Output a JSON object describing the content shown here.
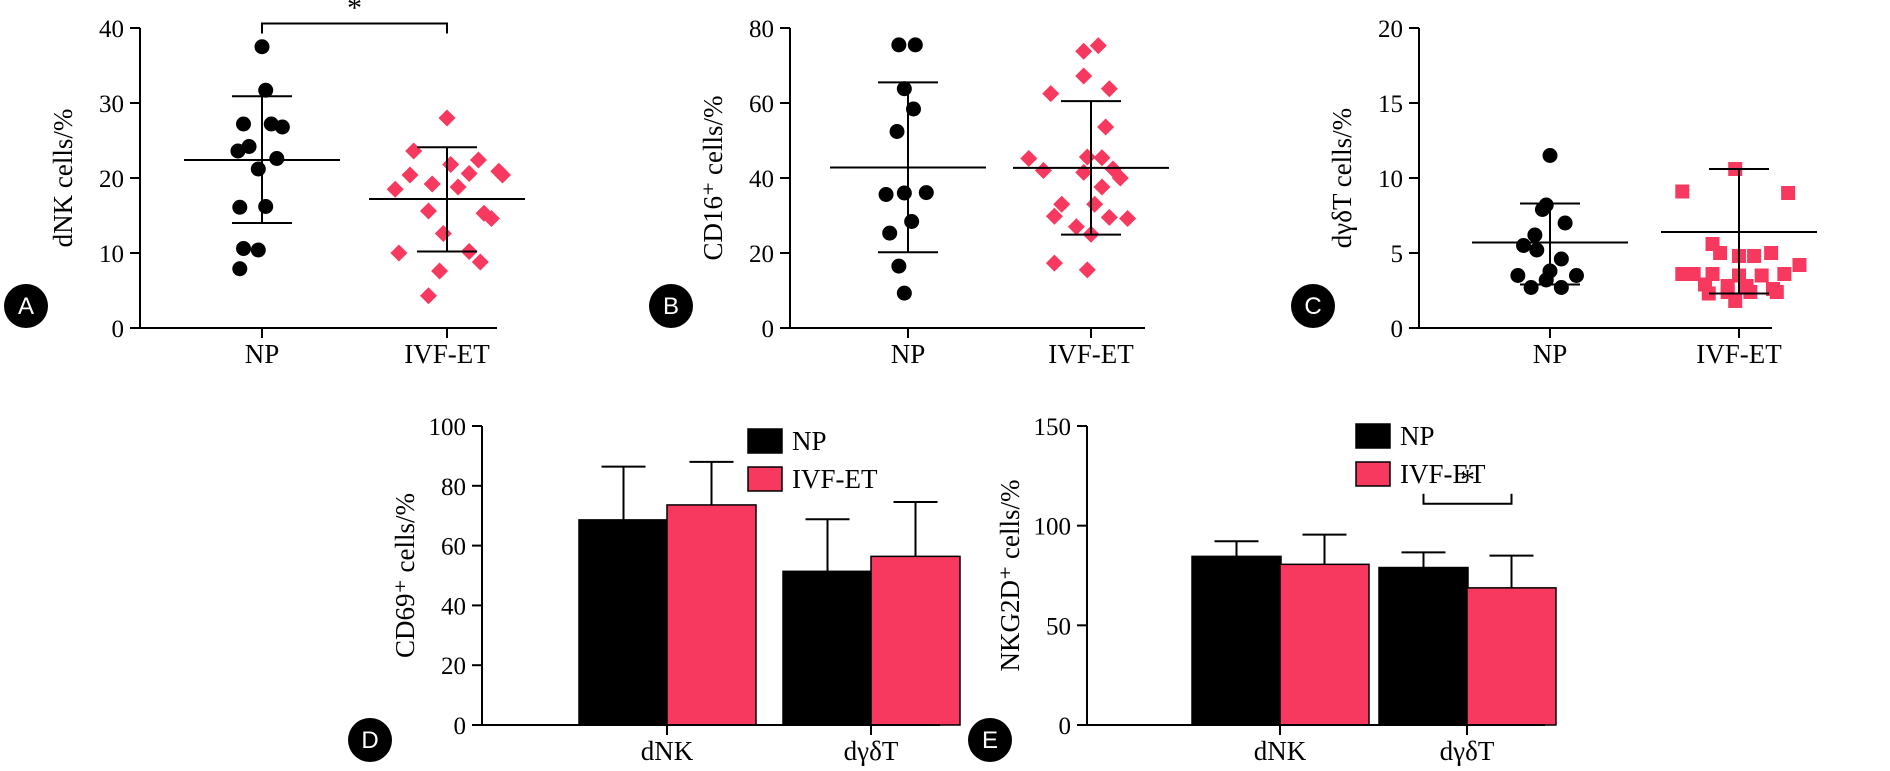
{
  "colors": {
    "np": "#000000",
    "ivf": "#f7385f",
    "axis": "#000000"
  },
  "chart_data": [
    {
      "id": "A",
      "type": "scatter",
      "panel_label": "A",
      "ylabel": "dNK cells/%",
      "ylim": [
        0,
        40
      ],
      "yticks": [
        0,
        10,
        20,
        30,
        40
      ],
      "categories": [
        "NP",
        "IVF-ET"
      ],
      "series": [
        {
          "name": "NP",
          "marker": "circle",
          "color": "#000000",
          "mean": 22.4,
          "sd_high": 30.9,
          "sd_low": 14.0,
          "points": [
            [
              0,
              37.5
            ],
            [
              0.02,
              31.7
            ],
            [
              -0.1,
              27.2
            ],
            [
              0.05,
              27.2
            ],
            [
              0.11,
              26.8
            ],
            [
              -0.07,
              24.2
            ],
            [
              -0.13,
              23.6
            ],
            [
              0.08,
              22.6
            ],
            [
              -0.02,
              21.2
            ],
            [
              -0.12,
              16.1
            ],
            [
              0.02,
              16.2
            ],
            [
              -0.1,
              10.6
            ],
            [
              -0.02,
              10.4
            ],
            [
              -0.12,
              7.9
            ]
          ]
        },
        {
          "name": "IVF-ET",
          "marker": "diamond",
          "color": "#f7385f",
          "mean": 17.2,
          "sd_high": 24.1,
          "sd_low": 10.2,
          "points": [
            [
              0,
              28.0
            ],
            [
              -0.18,
              23.6
            ],
            [
              0.17,
              22.4
            ],
            [
              0.02,
              21.8
            ],
            [
              0.28,
              20.9
            ],
            [
              0.12,
              20.6
            ],
            [
              -0.2,
              20.4
            ],
            [
              0.3,
              20.4
            ],
            [
              -0.08,
              19.2
            ],
            [
              0.06,
              18.8
            ],
            [
              -0.28,
              18.5
            ],
            [
              0.2,
              15.3
            ],
            [
              -0.1,
              15.6
            ],
            [
              0.24,
              14.6
            ],
            [
              -0.02,
              12.6
            ],
            [
              0.12,
              10.2
            ],
            [
              -0.26,
              10.0
            ],
            [
              -0.04,
              7.6
            ],
            [
              0.18,
              8.8
            ],
            [
              -0.1,
              4.3
            ]
          ]
        }
      ],
      "significance": {
        "label": "*",
        "between": [
          0,
          1
        ],
        "y": 40.6
      }
    },
    {
      "id": "B",
      "type": "scatter",
      "panel_label": "B",
      "ylabel": "CD16⁺ cells/%",
      "ylim": [
        0,
        80
      ],
      "yticks": [
        0,
        20,
        40,
        60,
        80
      ],
      "categories": [
        "NP",
        "IVF-ET"
      ],
      "series": [
        {
          "name": "NP",
          "marker": "circle",
          "color": "#000000",
          "mean": 42.8,
          "sd_high": 65.5,
          "sd_low": 20.2,
          "points": [
            [
              -0.05,
              75.5
            ],
            [
              0.04,
              75.5
            ],
            [
              -0.02,
              63.8
            ],
            [
              0.03,
              58.4
            ],
            [
              -0.06,
              52.4
            ],
            [
              -0.12,
              35.6
            ],
            [
              -0.02,
              36.0
            ],
            [
              0.1,
              36.1
            ],
            [
              0.02,
              28.4
            ],
            [
              -0.1,
              25.3
            ],
            [
              -0.05,
              16.5
            ],
            [
              -0.02,
              9.3
            ]
          ]
        },
        {
          "name": "IVF-ET",
          "marker": "diamond",
          "color": "#f7385f",
          "mean": 42.7,
          "sd_high": 60.5,
          "sd_low": 24.9,
          "points": [
            [
              0.04,
              75.3
            ],
            [
              -0.04,
              73.8
            ],
            [
              -0.04,
              67.2
            ],
            [
              0.1,
              63.8
            ],
            [
              -0.22,
              62.5
            ],
            [
              0.08,
              53.6
            ],
            [
              -0.34,
              45.2
            ],
            [
              -0.02,
              45.6
            ],
            [
              0.06,
              45.4
            ],
            [
              -0.26,
              42.0
            ],
            [
              0.12,
              42.4
            ],
            [
              -0.04,
              41.5
            ],
            [
              0.16,
              40.0
            ],
            [
              0.06,
              37.6
            ],
            [
              -0.16,
              33.0
            ],
            [
              0.02,
              33.0
            ],
            [
              -0.2,
              29.8
            ],
            [
              0.1,
              29.5
            ],
            [
              0.2,
              29.2
            ],
            [
              -0.08,
              27.0
            ],
            [
              0.0,
              25.0
            ],
            [
              -0.2,
              17.3
            ],
            [
              -0.02,
              15.5
            ]
          ]
        }
      ]
    },
    {
      "id": "C",
      "type": "scatter",
      "panel_label": "C",
      "ylabel": "dγδT cells/%",
      "ylim": [
        0,
        20
      ],
      "yticks": [
        0,
        5,
        10,
        15,
        20
      ],
      "categories": [
        "NP",
        "IVF-ET"
      ],
      "series": [
        {
          "name": "NP",
          "marker": "circle",
          "color": "#000000",
          "mean": 5.7,
          "sd_high": 8.3,
          "sd_low": 2.9,
          "points": [
            [
              0,
              11.5
            ],
            [
              -0.02,
              8.2
            ],
            [
              -0.04,
              7.9
            ],
            [
              0.08,
              7.0
            ],
            [
              -0.08,
              6.2
            ],
            [
              -0.14,
              5.5
            ],
            [
              -0.07,
              5.2
            ],
            [
              0.06,
              4.6
            ],
            [
              0.0,
              3.8
            ],
            [
              -0.17,
              3.5
            ],
            [
              0.14,
              3.5
            ],
            [
              -0.02,
              3.2
            ],
            [
              -0.1,
              2.7
            ],
            [
              0.06,
              2.7
            ]
          ]
        },
        {
          "name": "IVF-ET",
          "marker": "square",
          "color": "#f7385f",
          "mean": 6.4,
          "sd_high": 10.6,
          "sd_low": 2.3,
          "points": [
            [
              -0.02,
              10.6
            ],
            [
              -0.3,
              9.1
            ],
            [
              0.26,
              9.0
            ],
            [
              -0.14,
              5.6
            ],
            [
              0.32,
              4.2
            ],
            [
              -0.1,
              5.0
            ],
            [
              0.0,
              4.8
            ],
            [
              0.08,
              4.8
            ],
            [
              0.17,
              5.0
            ],
            [
              -0.3,
              3.6
            ],
            [
              -0.24,
              3.6
            ],
            [
              -0.14,
              3.6
            ],
            [
              0.0,
              3.5
            ],
            [
              0.12,
              3.5
            ],
            [
              0.24,
              3.6
            ],
            [
              -0.18,
              2.9
            ],
            [
              -0.06,
              2.8
            ],
            [
              0.04,
              2.8
            ],
            [
              0.18,
              2.6
            ],
            [
              -0.16,
              2.3
            ],
            [
              -0.06,
              2.4
            ],
            [
              0.06,
              2.4
            ],
            [
              0.2,
              2.4
            ],
            [
              -0.02,
              1.8
            ]
          ]
        }
      ]
    },
    {
      "id": "D",
      "type": "bar",
      "panel_label": "D",
      "ylabel": "CD69⁺ cells/%",
      "ylim": [
        0,
        100
      ],
      "yticks": [
        0,
        20,
        40,
        60,
        80,
        100
      ],
      "categories": [
        "dNK",
        "dγδT"
      ],
      "series": [
        {
          "name": "NP",
          "color": "#000000",
          "values": [
            68.6,
            51.4
          ],
          "errors": [
            17.8,
            17.4
          ]
        },
        {
          "name": "IVF-ET",
          "color": "#f7385f",
          "values": [
            73.6,
            56.4
          ],
          "errors": [
            14.4,
            18.2
          ]
        }
      ],
      "legend": "top-right"
    },
    {
      "id": "E",
      "type": "bar",
      "panel_label": "E",
      "ylabel": "NKG2D⁺ cells/%",
      "ylim": [
        0,
        150
      ],
      "yticks": [
        0,
        50,
        100,
        150
      ],
      "categories": [
        "dNK",
        "dγδT"
      ],
      "series": [
        {
          "name": "NP",
          "color": "#000000",
          "values": [
            84.6,
            79.0
          ],
          "errors": [
            7.6,
            7.6
          ]
        },
        {
          "name": "IVF-ET",
          "color": "#f7385f",
          "values": [
            80.6,
            68.8
          ],
          "errors": [
            14.9,
            16.2
          ]
        }
      ],
      "legend": "top-right",
      "significance": {
        "label": "*",
        "group": 1,
        "y": 111
      }
    }
  ]
}
